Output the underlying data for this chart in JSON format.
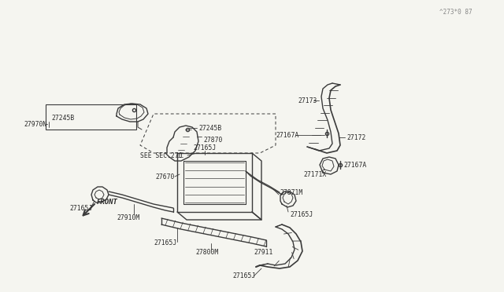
{
  "bg_color": "#f5f5f0",
  "line_color": "#3a3a3a",
  "text_color": "#2a2a2a",
  "label_fontsize": 5.8,
  "watermark": "^273*0 87",
  "components": {
    "top_duct_label": "27165J",
    "center_duct_label1": "27165J",
    "center_duct_label2": "27800M",
    "center_duct_label3": "27911",
    "left_nozzle_label1": "27165J",
    "left_nozzle_label2": "27910M",
    "left_small_label": "27165J",
    "right_duct_label1": "27165J",
    "right_duct_label2": "27871M",
    "center_unit_label1": "27670",
    "center_unit_label2": "27165J",
    "right_bracket_label1": "27171X",
    "right_bracket_label2": "27167A",
    "right_bracket_label3": "27167A",
    "right_bracket_label4": "27172",
    "right_bracket_label5": "27173",
    "sec_label": "SEE SEC.270",
    "lower_duct_label1": "27870",
    "lower_duct_label2": "27245B",
    "lower_duct_label3": "27245B",
    "lower_duct_label4": "27970N",
    "front_label": "FRONT"
  }
}
